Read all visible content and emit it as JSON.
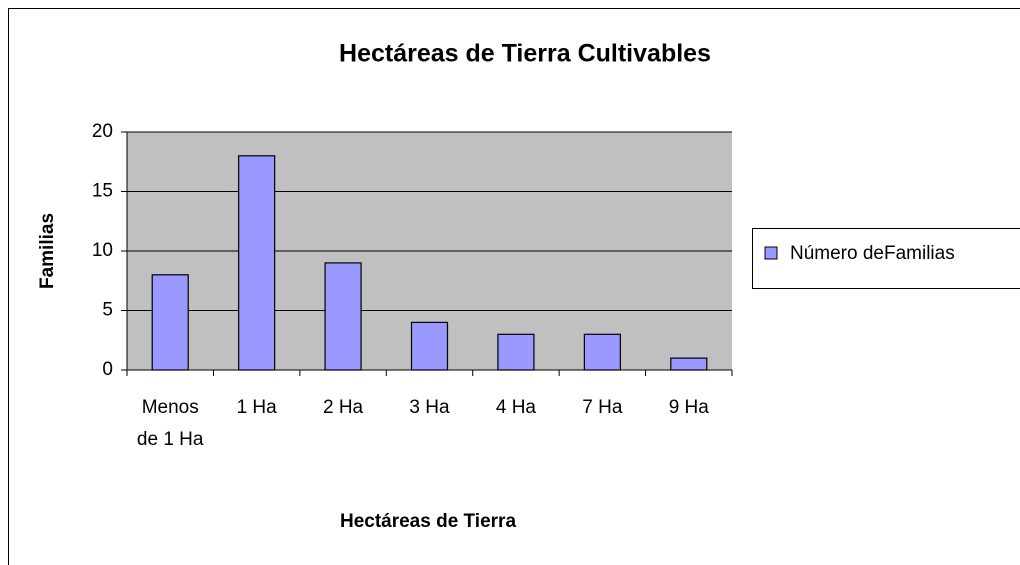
{
  "chart_data": {
    "type": "bar",
    "title": "Hectáreas de Tierra Cultivables",
    "x_label": "Hectáreas de Tierra",
    "y_label": "Familias",
    "categories": [
      "Menos de 1 Ha",
      "1 Ha",
      "2 Ha",
      "3 Ha",
      "4 Ha",
      "7 Ha",
      "9 Ha"
    ],
    "series": [
      {
        "name": "Número deFamilias",
        "color": "#9999ff",
        "values": [
          8,
          18,
          9,
          4,
          3,
          3,
          1
        ]
      }
    ],
    "ylim": [
      0,
      20
    ],
    "yticks": [
      0,
      5,
      10,
      15,
      20
    ],
    "grid": true,
    "legend": "right"
  }
}
